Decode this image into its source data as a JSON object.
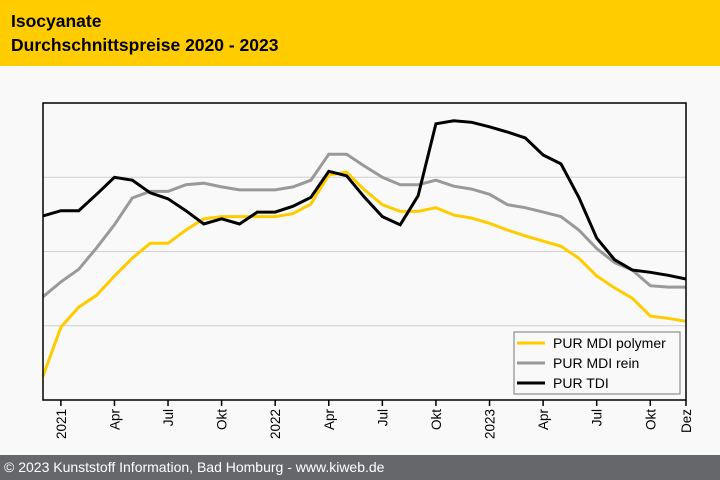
{
  "header": {
    "title_line1": "Isocyanate",
    "title_line2": "Durchschnittspreise 2020 - 2023"
  },
  "footer": {
    "text": "© 2023 Kunststoff Information, Bad Homburg - www.kiweb.de"
  },
  "colors": {
    "header_bg": "#ffcc00",
    "footer_bg": "#65676b",
    "mdi_polymer": "#ffcc00",
    "mdi_rein": "#999999",
    "tdi": "#000000"
  },
  "chart_data": {
    "type": "line",
    "title": "Isocyanate Durchschnittspreise 2020 - 2023",
    "xlabel": "",
    "ylabel": "",
    "ylim": [
      0,
      4
    ],
    "y_note": "unlabeled index scale; gridlines at 1, 2, 3",
    "grid": true,
    "legend_position": "bottom-right",
    "x": [
      "Dez 2020",
      "Jan 2021",
      "Feb 2021",
      "Mär 2021",
      "Apr 2021",
      "Mai 2021",
      "Jun 2021",
      "Jul 2021",
      "Aug 2021",
      "Sep 2021",
      "Okt 2021",
      "Nov 2021",
      "Dez 2021",
      "Jan 2022",
      "Feb 2022",
      "Mär 2022",
      "Apr 2022",
      "Mai 2022",
      "Jun 2022",
      "Jul 2022",
      "Aug 2022",
      "Sep 2022",
      "Okt 2022",
      "Nov 2022",
      "Dez 2022",
      "Jan 2023",
      "Feb 2023",
      "Mär 2023",
      "Apr 2023",
      "Mai 2023",
      "Jun 2023",
      "Jul 2023",
      "Aug 2023",
      "Sep 2023",
      "Okt 2023",
      "Nov 2023",
      "Dez 2023"
    ],
    "tick_labels": [
      {
        "index": 1,
        "label": "2021"
      },
      {
        "index": 4,
        "label": "Apr"
      },
      {
        "index": 7,
        "label": "Jul"
      },
      {
        "index": 10,
        "label": "Okt"
      },
      {
        "index": 13,
        "label": "2022"
      },
      {
        "index": 16,
        "label": "Apr"
      },
      {
        "index": 19,
        "label": "Jul"
      },
      {
        "index": 22,
        "label": "Okt"
      },
      {
        "index": 25,
        "label": "2023"
      },
      {
        "index": 28,
        "label": "Apr"
      },
      {
        "index": 31,
        "label": "Jul"
      },
      {
        "index": 34,
        "label": "Okt"
      },
      {
        "index": 36,
        "label": "Dez"
      }
    ],
    "series": [
      {
        "name": "PUR MDI polymer",
        "color": "#ffcc00",
        "values": [
          0.32,
          0.98,
          1.25,
          1.41,
          1.67,
          1.91,
          2.11,
          2.11,
          2.29,
          2.44,
          2.47,
          2.47,
          2.47,
          2.47,
          2.51,
          2.64,
          3.03,
          3.07,
          2.83,
          2.63,
          2.54,
          2.54,
          2.59,
          2.49,
          2.45,
          2.38,
          2.29,
          2.21,
          2.14,
          2.07,
          1.91,
          1.67,
          1.51,
          1.37,
          1.13,
          1.1,
          1.06
        ]
      },
      {
        "name": "PUR MDI rein",
        "color": "#999999",
        "values": [
          1.39,
          1.59,
          1.76,
          2.05,
          2.36,
          2.72,
          2.81,
          2.81,
          2.9,
          2.92,
          2.87,
          2.83,
          2.83,
          2.83,
          2.87,
          2.96,
          3.31,
          3.31,
          3.15,
          3.0,
          2.9,
          2.9,
          2.96,
          2.88,
          2.84,
          2.77,
          2.63,
          2.59,
          2.53,
          2.47,
          2.29,
          2.04,
          1.85,
          1.75,
          1.54,
          1.52,
          1.52
        ]
      },
      {
        "name": "PUR TDI",
        "color": "#000000",
        "values": [
          2.48,
          2.55,
          2.55,
          2.77,
          3.0,
          2.96,
          2.79,
          2.71,
          2.55,
          2.37,
          2.44,
          2.37,
          2.53,
          2.53,
          2.61,
          2.73,
          3.08,
          3.02,
          2.73,
          2.47,
          2.36,
          2.75,
          3.72,
          3.76,
          3.74,
          3.68,
          3.61,
          3.53,
          3.3,
          3.18,
          2.73,
          2.18,
          1.89,
          1.75,
          1.72,
          1.68,
          1.63
        ]
      }
    ]
  }
}
